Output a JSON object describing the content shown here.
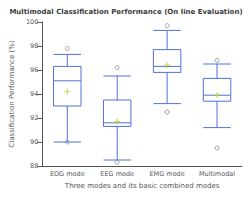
{
  "chart_data": {
    "type": "box",
    "title": "Multimodal Classification Performance (On line Evaluation)",
    "xlabel": "Three modes and its basic combined modes",
    "ylabel": "Classification Performance (%)",
    "categories": [
      "EOG mode",
      "EEG mode",
      "EMG mode",
      "Multimodal"
    ],
    "boxes": [
      {
        "q1": 93.0,
        "median": 95.1,
        "q3": 96.3,
        "whislo": 90.0,
        "whishi": 97.3,
        "mean": 94.2,
        "fliers_low": [
          90.0
        ],
        "fliers_high": [
          97.8
        ]
      },
      {
        "q1": 91.3,
        "median": 91.6,
        "q3": 93.5,
        "whislo": 88.5,
        "whishi": 95.5,
        "mean": 91.7,
        "fliers_low": [
          88.3
        ],
        "fliers_high": [
          96.2
        ]
      },
      {
        "q1": 95.8,
        "median": 96.3,
        "q3": 97.7,
        "whislo": 93.2,
        "whishi": 99.3,
        "mean": 96.4,
        "fliers_low": [
          92.5
        ],
        "fliers_high": [
          99.7
        ]
      },
      {
        "q1": 93.4,
        "median": 93.9,
        "q3": 95.3,
        "whislo": 91.2,
        "whishi": 96.5,
        "mean": 93.9,
        "fliers_low": [
          89.5
        ],
        "fliers_high": [
          96.8
        ]
      }
    ],
    "ylim": [
      88,
      100
    ],
    "yticks": [
      88,
      90,
      92,
      94,
      96,
      98,
      100
    ],
    "grid": false
  }
}
